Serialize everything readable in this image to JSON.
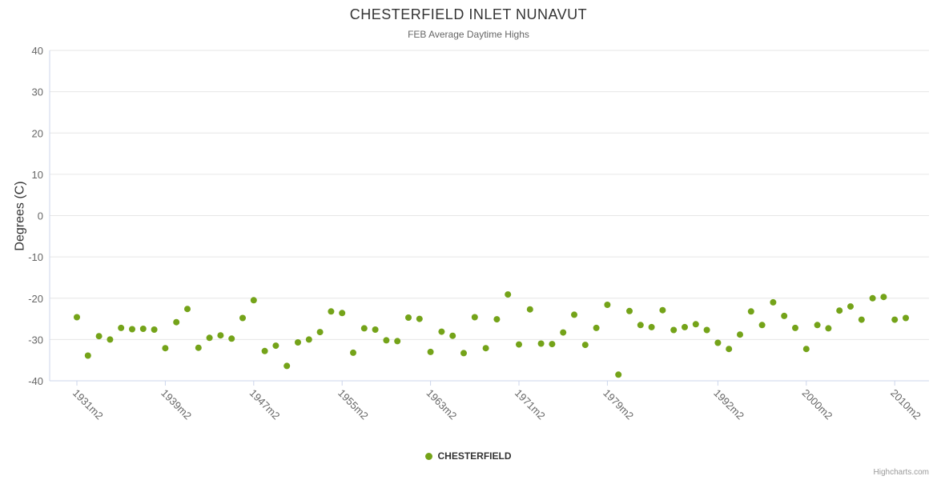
{
  "title": "CHESTERFIELD INLET NUNAVUT",
  "subtitle": "FEB Average Daytime Highs",
  "y_axis": {
    "title": "Degrees (C)",
    "ticks": [
      40,
      30,
      20,
      10,
      0,
      -10,
      -20,
      -30,
      -40
    ]
  },
  "legend": {
    "label": "CHESTERFIELD"
  },
  "credits": "Highcharts.com",
  "colors": {
    "point": "#74a319",
    "grid": "#e6e6e6",
    "axis": "#ccd6eb",
    "text_muted": "#666666",
    "text_dark": "#333333"
  },
  "chart_data": {
    "type": "scatter",
    "title": "CHESTERFIELD INLET NUNAVUT",
    "subtitle": "FEB Average Daytime Highs",
    "ylabel": "Degrees (C)",
    "ylim": [
      -40,
      40
    ],
    "grid": true,
    "legend_position": "bottom",
    "x_tick_labels": [
      {
        "index": 0,
        "label": "1931m2"
      },
      {
        "index": 8,
        "label": "1939m2"
      },
      {
        "index": 16,
        "label": "1947m2"
      },
      {
        "index": 24,
        "label": "1955m2"
      },
      {
        "index": 32,
        "label": "1963m2"
      },
      {
        "index": 40,
        "label": "1971m2"
      },
      {
        "index": 48,
        "label": "1979m2"
      },
      {
        "index": 58,
        "label": "1992m2"
      },
      {
        "index": 66,
        "label": "2000m2"
      },
      {
        "index": 74,
        "label": "2010m2"
      }
    ],
    "series": [
      {
        "name": "CHESTERFIELD",
        "values": [
          -24.6,
          -33.9,
          -29.2,
          -30.0,
          -27.2,
          -27.5,
          -27.4,
          -27.6,
          -32.1,
          -25.8,
          -22.6,
          -32.0,
          -29.6,
          -29.0,
          -29.8,
          -24.8,
          -20.5,
          -32.8,
          -31.5,
          -36.4,
          -30.7,
          -30.0,
          -28.2,
          -23.2,
          -23.6,
          -33.2,
          -27.3,
          -27.6,
          -30.2,
          -30.4,
          -24.7,
          -25.0,
          -33.0,
          -28.1,
          -29.1,
          -33.3,
          -24.6,
          -32.1,
          -25.1,
          -19.1,
          -31.2,
          -22.7,
          -31.0,
          -31.1,
          -28.3,
          -24.0,
          -31.3,
          -27.2,
          -21.6,
          -38.5,
          -23.1,
          -26.5,
          -27.0,
          -22.9,
          -27.7,
          -27.0,
          -26.3,
          -27.7,
          -30.8,
          -32.3,
          -28.8,
          -23.2,
          -26.5,
          -21.0,
          -24.3,
          -27.2,
          -32.3,
          -26.5,
          -27.3,
          -23.0,
          -22.0,
          -25.2,
          -20.0,
          -19.7,
          -25.2,
          -24.8
        ]
      }
    ]
  }
}
